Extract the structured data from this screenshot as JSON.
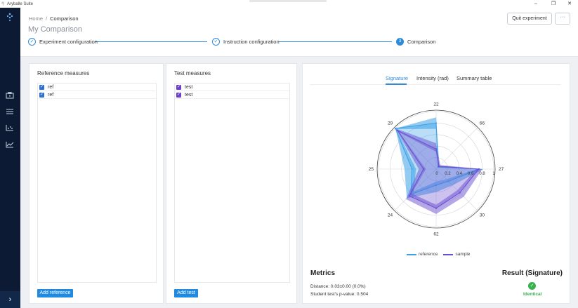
{
  "window": {
    "app_title": "Aryballe Suite",
    "controls": {
      "minimize": "–",
      "maximize": "❐",
      "close": "✕"
    }
  },
  "sidebar": {
    "logo_icon": "aryballe-logo-icon",
    "items": [
      {
        "icon": "experiment-icon"
      },
      {
        "icon": "list-icon"
      },
      {
        "icon": "scatter-chart-icon"
      },
      {
        "icon": "line-chart-icon"
      }
    ],
    "expand_icon": "›"
  },
  "header": {
    "breadcrumb": {
      "home": "Home",
      "separator": "/",
      "current": "Comparison"
    },
    "page_title": "My Comparison",
    "quit_label": "Quit experiment",
    "more_label": "···"
  },
  "stepper": {
    "steps": [
      {
        "label": "Experiment configuration",
        "state": "done",
        "marker": "✓"
      },
      {
        "label": "Instruction configuration",
        "state": "done",
        "marker": "✓"
      },
      {
        "label": "Comparison",
        "state": "active",
        "marker": "3"
      }
    ]
  },
  "reference": {
    "title": "Reference measures",
    "items": [
      {
        "label": "ref",
        "checked": true
      },
      {
        "label": "ref",
        "checked": true
      }
    ],
    "add_label": "Add reference"
  },
  "test": {
    "title": "Test measures",
    "items": [
      {
        "label": "test",
        "checked": true
      },
      {
        "label": "test",
        "checked": true
      }
    ],
    "add_label": "Add test"
  },
  "comparison": {
    "tabs": [
      {
        "label": "Signature",
        "active": true
      },
      {
        "label": "Intensity (rad)",
        "active": false
      },
      {
        "label": "Summary table",
        "active": false
      }
    ],
    "metrics": {
      "title": "Metrics",
      "distance": "Distance: 0.03±0.00 (0.0%)",
      "pvalue": "Student test's p-value: 0.504"
    },
    "result": {
      "title": "Result (Signature)",
      "text": "Identical",
      "icon": "check-circle-icon"
    }
  },
  "chart_data": {
    "type": "polar",
    "angular_categories": [
      "22",
      "66",
      "27",
      "30",
      "62",
      "24",
      "25",
      "29"
    ],
    "radial_ticks": [
      "0",
      "0.2",
      "0.4",
      "0.6",
      "0.8",
      "1"
    ],
    "rlim": [
      0,
      1
    ],
    "series": [
      {
        "name": "reference",
        "color": "#3aa0e8",
        "values": [
          0.8,
          0.05,
          0.75,
          0.3,
          0.28,
          0.62,
          0.42,
          1.0
        ],
        "band_low": [
          0.7,
          0.04,
          0.7,
          0.25,
          0.22,
          0.55,
          0.35,
          0.98
        ],
        "band_high": [
          0.9,
          0.08,
          0.82,
          0.4,
          0.4,
          0.72,
          0.55,
          1.0
        ]
      },
      {
        "name": "sample",
        "color": "#6a4fd1",
        "values": [
          0.35,
          0.07,
          0.74,
          0.58,
          0.68,
          0.66,
          0.22,
          0.95
        ],
        "band_low": [
          0.3,
          0.05,
          0.7,
          0.52,
          0.62,
          0.6,
          0.18,
          0.9
        ],
        "band_high": [
          0.45,
          0.1,
          0.8,
          0.68,
          0.78,
          0.74,
          0.3,
          1.0
        ]
      }
    ],
    "legend_position": "bottom"
  },
  "colors": {
    "accent": "#2d8bd9",
    "sidebar": "#0c1b33",
    "success": "#37b24d"
  }
}
